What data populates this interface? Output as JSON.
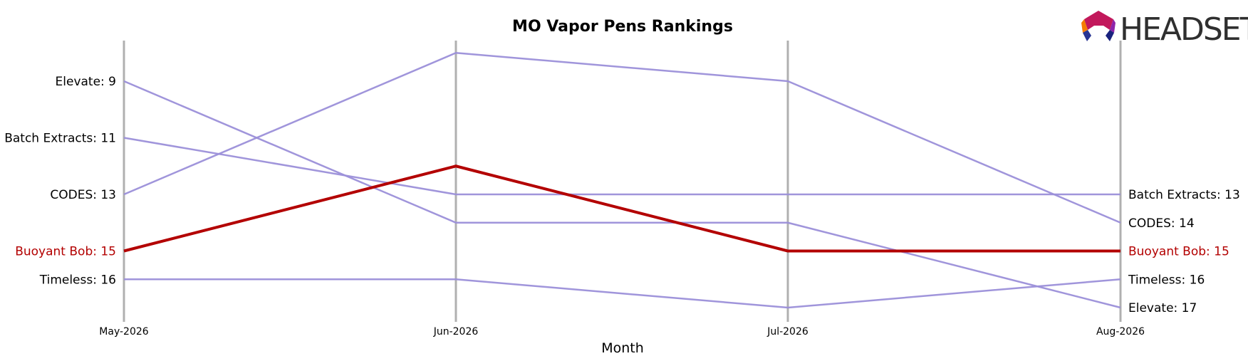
{
  "chart_data": {
    "type": "line",
    "title": "MO Vapor Pens Rankings",
    "xlabel": "Month",
    "ylabel": "",
    "x": [
      "May-2026",
      "Jun-2026",
      "Jul-2026",
      "Aug-2026"
    ],
    "y_inverted": true,
    "ylim": [
      7,
      17.5
    ],
    "grid": false,
    "series": [
      {
        "name": "Elevate",
        "values": [
          9,
          14,
          14,
          17
        ],
        "highlight": false
      },
      {
        "name": "Batch Extracts",
        "values": [
          11,
          13,
          13,
          13
        ],
        "highlight": false
      },
      {
        "name": "CODES",
        "values": [
          13,
          8,
          9,
          14
        ],
        "highlight": false
      },
      {
        "name": "Buoyant Bob",
        "values": [
          15,
          12,
          15,
          15
        ],
        "highlight": true
      },
      {
        "name": "Timeless",
        "values": [
          16,
          16,
          17,
          16
        ],
        "highlight": false
      }
    ],
    "start_labels": [
      "Elevate: 9",
      "Batch Extracts: 11",
      "CODES: 13",
      "Buoyant Bob: 15",
      "Timeless: 16"
    ],
    "end_labels": [
      "Batch Extracts: 13",
      "CODES: 14",
      "Buoyant Bob: 15",
      "Timeless: 16",
      "Elevate: 17"
    ],
    "colors": {
      "normal": "#9b8fd9",
      "highlight": "#b30000",
      "axis": "#b0b0b0"
    }
  },
  "logo": {
    "text": "HEADSET"
  }
}
